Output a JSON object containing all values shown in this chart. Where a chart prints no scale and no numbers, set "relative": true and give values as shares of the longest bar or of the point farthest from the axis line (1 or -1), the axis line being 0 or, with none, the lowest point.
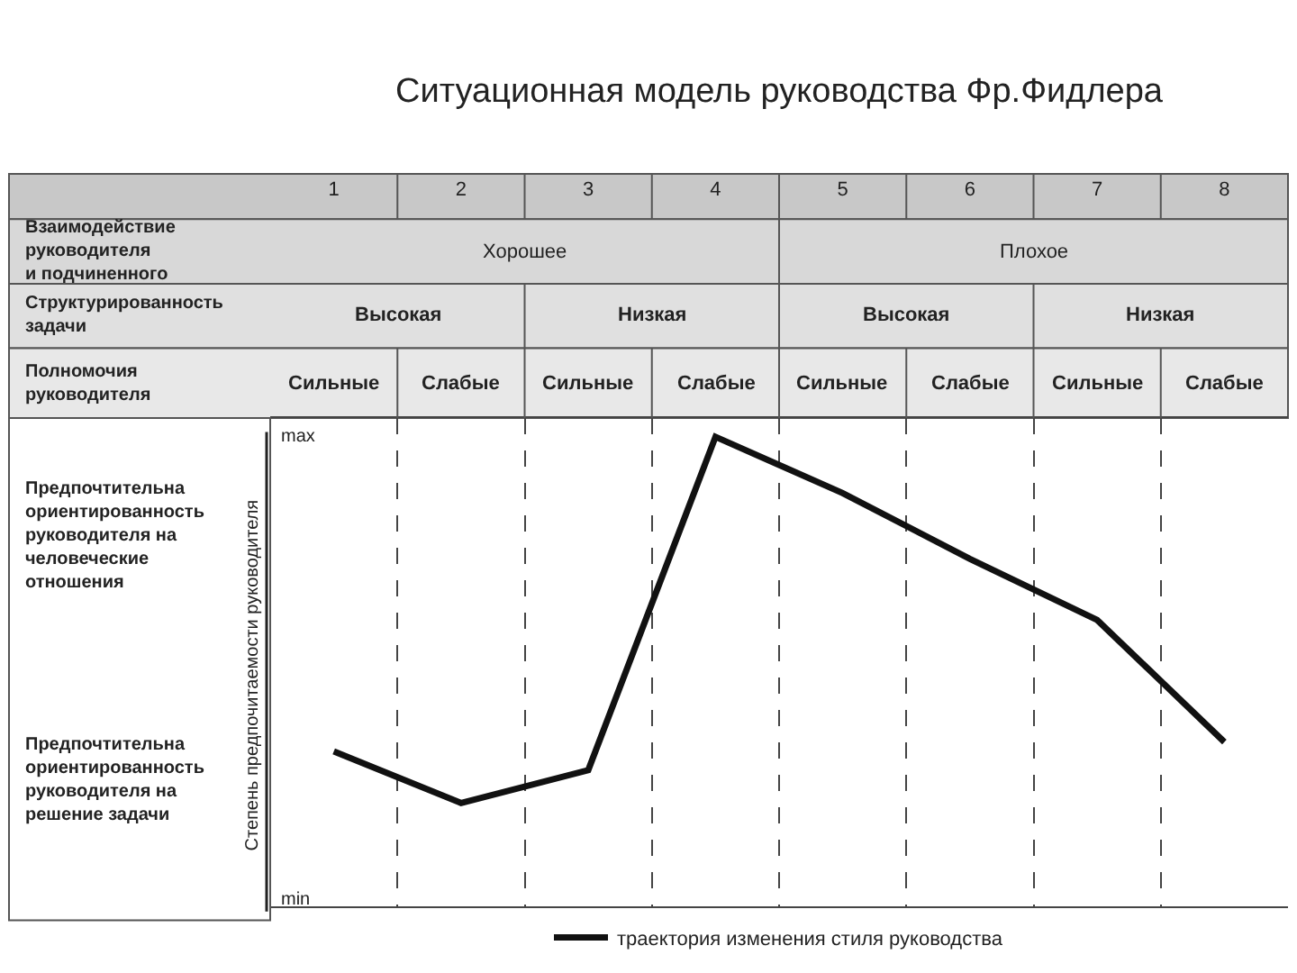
{
  "chart_data": {
    "type": "line",
    "title": "Ситуационная модель руководства Фр.Фидлера",
    "categories": [
      "1",
      "2",
      "3",
      "4",
      "5",
      "6",
      "7",
      "8"
    ],
    "relative": true,
    "series": [
      {
        "name": "траектория изменения стиля руководства",
        "color": "#111111",
        "values": [
          0.33,
          0.22,
          0.29,
          1,
          0.88,
          0.74,
          0.61,
          0.35
        ]
      }
    ],
    "ylabel": "Степень предпочитаемости руководителя",
    "annotations": [
      "Взаимодействие\nруководителя\nи подчиненного",
      "Хорошее",
      "Плохое",
      "Структурированность\nзадачи",
      "Высокая",
      "Низкая",
      "Высокая",
      "Низкая",
      "Полномочия\nруководителя",
      "Сильные",
      "Слабые",
      "Сильные",
      "Слабые",
      "Сильные",
      "Слабые",
      "Сильные",
      "Слабые",
      "Предпочтительна\nориентированность\nруководителя на\nчеловеческие\nотношения",
      "Предпочтительна\nориентированность\nруководителя на\nрешение задачи",
      "max",
      "min"
    ],
    "grid": "x",
    "legend": "bottom",
    "line_style": "solid"
  }
}
